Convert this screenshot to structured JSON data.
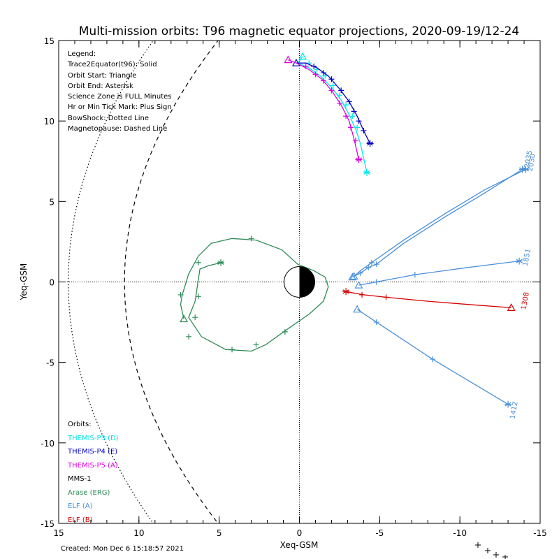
{
  "chart_data": {
    "type": "line",
    "title": "Multi-mission orbits: T96 magnetic equator projections, 2020-09-19/12-24",
    "xlabel": "Xeq-GSM",
    "ylabel": "Yeq-GSM",
    "xlim": [
      15,
      -15
    ],
    "ylim": [
      15,
      -15
    ],
    "xticks": [
      15,
      10,
      5,
      0,
      -5,
      -10,
      -15
    ],
    "xtick_labels": [
      "15",
      "10",
      "5",
      "0",
      "-5",
      "-10",
      "-15"
    ],
    "yticks": [
      -15,
      -10,
      -5,
      0,
      5,
      10,
      15
    ],
    "ytick_labels": [
      "-15",
      "-10",
      "-5",
      "0",
      "5",
      "10",
      "15"
    ],
    "legend": {
      "header": "Legend:",
      "entries": [
        "Trace2Equator(t96): Solid",
        "Orbit Start: Triangle",
        "Orbit End: Asterisk",
        "Science Zone is FULL Minutes",
        "Hr or Min Tick Mark: Plus Sign",
        "BowShock: Dotted Line",
        "Magnetopause: Dashed Line"
      ]
    },
    "orbits_legend": {
      "header": "Orbits:",
      "entries": [
        {
          "label": "THEMIS-P3 (D)",
          "color": "#00e5e5"
        },
        {
          "label": "THEMIS-P4 (E)",
          "color": "#0000c8"
        },
        {
          "label": "THEMIS-P5 (A)",
          "color": "#e000e0"
        },
        {
          "label": "MMS-1",
          "color": "#000000"
        },
        {
          "label": "Arase (ERG)",
          "color": "#2e8b57"
        },
        {
          "label": "ELF (A)",
          "color": "#4a90d9"
        },
        {
          "label": "ELF (B)",
          "color": "#d40000"
        }
      ]
    },
    "series": [
      {
        "color": "#2e8b57",
        "x": [
          7.2,
          7.4,
          7.3,
          6.9,
          6.3,
          5.5,
          4.2,
          2.7,
          1.1,
          0.1,
          -0.9,
          -1.6,
          -1.8,
          -1.5,
          -0.6,
          0.7,
          2.1,
          3.0,
          4.6,
          6.1,
          6.9,
          6.5,
          6.2,
          5.7,
          4.9
        ],
        "y": [
          -2.3,
          -1.4,
          -0.8,
          0.5,
          1.6,
          2.4,
          2.7,
          2.6,
          2.0,
          1.1,
          0.7,
          0.3,
          -0.3,
          -1.2,
          -2.0,
          -2.9,
          -3.9,
          -4.3,
          -4.2,
          -3.4,
          -2.2,
          -1.2,
          0.8,
          1.0,
          1.2
        ],
        "ticks": [
          [
            7.4,
            -0.8
          ],
          [
            6.3,
            1.2
          ],
          [
            4.2,
            -4.2
          ],
          [
            2.7,
            -3.9
          ],
          [
            0.9,
            -3.1
          ],
          [
            3.0,
            2.7
          ],
          [
            6.9,
            -3.4
          ],
          [
            6.5,
            -2.2
          ],
          [
            6.3,
            -0.9
          ]
        ],
        "start": [
          7.2,
          -2.3
        ],
        "end": [
          4.9,
          1.2
        ]
      },
      {
        "color": "#4a90d9",
        "x": [
          -3.6,
          -4.8,
          -8.3,
          -13.0
        ],
        "y": [
          -1.7,
          -2.5,
          -4.8,
          -7.6
        ],
        "ticks": [
          [
            -4.8,
            -2.5
          ],
          [
            -8.3,
            -4.8
          ]
        ],
        "start": [
          -3.6,
          -1.7
        ],
        "end": [
          -13.0,
          -7.6
        ],
        "label": "1412",
        "label_pos": [
          -13.5,
          -8.0
        ]
      },
      {
        "color": "#d40000",
        "x": [
          -2.9,
          -4.0,
          -5.4,
          -8.0,
          -10.5,
          -13.2
        ],
        "y": [
          -0.6,
          -0.8,
          -0.95,
          -1.2,
          -1.4,
          -1.6
        ],
        "ticks": [
          [
            -3.9,
            -0.8
          ],
          [
            -5.4,
            -0.95
          ]
        ],
        "start": [
          -13.2,
          -1.6
        ],
        "end": [
          -2.9,
          -0.6
        ],
        "label": "1308",
        "label_pos": [
          -14.2,
          -1.2
        ]
      },
      {
        "color": "#4a90d9",
        "x": [
          -3.7,
          -4.8,
          -7.2,
          -10.5,
          -13.7
        ],
        "y": [
          -0.2,
          0.0,
          0.45,
          0.9,
          1.3
        ],
        "ticks": [
          [
            -4.8,
            0.0
          ],
          [
            -7.2,
            0.45
          ]
        ],
        "start": [
          -3.7,
          -0.2
        ],
        "end": [
          -13.7,
          1.3
        ],
        "label": "1851",
        "label_pos": [
          -14.3,
          1.5
        ]
      },
      {
        "color": "#4a90d9",
        "x": [
          -3.3,
          -3.8,
          -4.3,
          -4.8,
          -6.5,
          -9.0,
          -11.5,
          -13.9
        ],
        "y": [
          0.3,
          0.55,
          0.9,
          1.1,
          2.4,
          4.0,
          5.5,
          7.0
        ],
        "ticks": [
          [
            -3.8,
            0.55
          ],
          [
            -4.3,
            0.9
          ],
          [
            -4.8,
            1.1
          ]
        ],
        "start": [
          -3.3,
          0.3
        ],
        "end": [
          -13.9,
          7.0
        ],
        "label": "2035",
        "label_pos": [
          -14.4,
          7.6
        ]
      },
      {
        "color": "#4a90d9",
        "x": [
          -3.4,
          -3.8,
          -4.5,
          -6.5,
          -9.0,
          -11.5,
          -14.1
        ],
        "y": [
          0.35,
          0.7,
          1.2,
          2.6,
          4.2,
          5.7,
          7.0
        ],
        "ticks": [
          [
            -4.5,
            1.2
          ]
        ],
        "start": [
          -3.4,
          0.35
        ],
        "end": [
          -14.1,
          7.0
        ],
        "label": "2030",
        "label_pos": [
          -14.6,
          7.4
        ]
      },
      {
        "color": "#00e5e5",
        "x": [
          -0.2,
          0.1,
          -0.6,
          -1.3,
          -2.0,
          -2.6,
          -3.1,
          -3.5,
          -3.8,
          -4.0,
          -4.2
        ],
        "y": [
          14.0,
          13.6,
          13.3,
          12.8,
          12.1,
          11.3,
          10.4,
          9.5,
          8.6,
          7.7,
          6.8
        ],
        "ticks": [
          [
            -0.6,
            13.6
          ],
          [
            -1.1,
            13.2
          ],
          [
            -1.6,
            12.8
          ],
          [
            -2.1,
            12.2
          ],
          [
            -2.5,
            11.6
          ],
          [
            -2.9,
            11.0
          ],
          [
            -3.3,
            10.3
          ],
          [
            -3.6,
            9.6
          ]
        ],
        "start": [
          -0.2,
          14.0
        ],
        "end": [
          -4.2,
          6.8
        ]
      },
      {
        "color": "#0000c8",
        "x": [
          0.2,
          -0.4,
          -1.1,
          -1.8,
          -2.5,
          -3.1,
          -3.6,
          -4.0,
          -4.4
        ],
        "y": [
          13.6,
          13.6,
          13.3,
          12.8,
          12.0,
          11.2,
          10.3,
          9.4,
          8.6
        ],
        "ticks": [
          [
            -0.9,
            13.4
          ],
          [
            -1.5,
            13.0
          ],
          [
            -2.0,
            12.6
          ],
          [
            -2.6,
            11.9
          ],
          [
            -3.1,
            11.2
          ],
          [
            -3.4,
            10.6
          ],
          [
            -3.7,
            10.0
          ],
          [
            -4.0,
            9.4
          ]
        ],
        "start": [
          0.2,
          13.6
        ],
        "end": [
          -4.4,
          8.6
        ]
      },
      {
        "color": "#e000e0",
        "x": [
          0.7,
          0.2,
          -0.6,
          -1.4,
          -2.0,
          -2.6,
          -3.1,
          -3.4,
          -3.7
        ],
        "y": [
          13.8,
          13.6,
          13.2,
          12.6,
          11.9,
          11.0,
          10.0,
          8.9,
          7.6
        ],
        "ticks": [
          [
            -0.4,
            13.4
          ],
          [
            -1.0,
            12.9
          ],
          [
            -1.5,
            12.5
          ],
          [
            -2.0,
            11.9
          ],
          [
            -2.5,
            11.1
          ],
          [
            -2.9,
            10.3
          ],
          [
            -3.2,
            9.6
          ],
          [
            -3.5,
            8.8
          ]
        ],
        "start": [
          0.7,
          13.8
        ],
        "end": [
          -3.7,
          7.6
        ]
      }
    ]
  },
  "footer": {
    "created": "Created: Mon Dec  6 15:18:57 2021"
  }
}
